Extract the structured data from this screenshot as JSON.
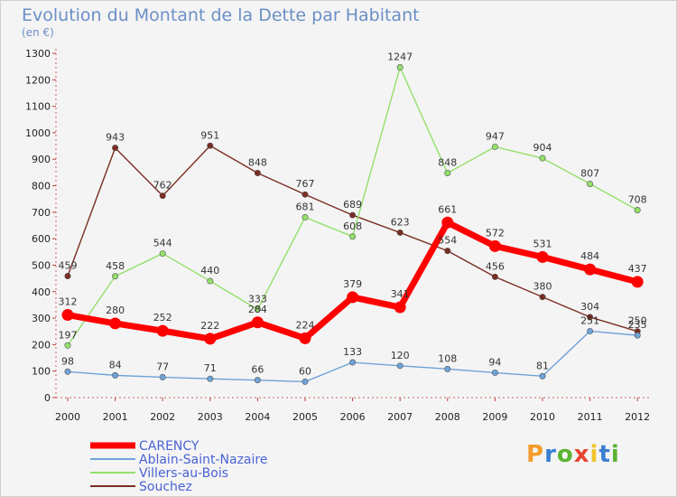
{
  "colors": {
    "CARENCY": "#ff0000",
    "Ablain-Saint-Nazaire": "#6fa3d8",
    "Villers-au-Bois": "#93e06a",
    "Souchez": "#7a2d22"
  },
  "chart_data": {
    "type": "line",
    "title": "Evolution du Montant de la Dette par Habitant",
    "subtitle": "(en €)",
    "xlabel": "",
    "ylabel": "",
    "ylim": [
      0,
      1300
    ],
    "yticks": [
      0,
      100,
      200,
      300,
      400,
      500,
      600,
      700,
      800,
      900,
      1000,
      1100,
      1200,
      1300
    ],
    "categories": [
      "2000",
      "2001",
      "2002",
      "2003",
      "2004",
      "2005",
      "2006",
      "2007",
      "2008",
      "2009",
      "2010",
      "2011",
      "2012"
    ],
    "series": [
      {
        "name": "Souchez",
        "values": [
          459,
          943,
          762,
          951,
          848,
          767,
          689,
          623,
          554,
          456,
          380,
          304,
          250
        ]
      },
      {
        "name": "Villers-au-Bois",
        "values": [
          197,
          458,
          544,
          440,
          333,
          681,
          608,
          1247,
          848,
          947,
          904,
          807,
          708
        ]
      },
      {
        "name": "Ablain-Saint-Nazaire",
        "values": [
          98,
          84,
          77,
          71,
          66,
          60,
          133,
          120,
          108,
          94,
          81,
          251,
          235
        ]
      },
      {
        "name": "CARENCY",
        "values": [
          312,
          280,
          252,
          222,
          284,
          224,
          379,
          341,
          661,
          572,
          531,
          484,
          437
        ]
      }
    ],
    "legend": [
      "CARENCY",
      "Ablain-Saint-Nazaire",
      "Villers-au-Bois",
      "Souchez"
    ],
    "legend_position": "bottom-left",
    "grid": false
  },
  "logo": {
    "letters": [
      "P",
      "r",
      "o",
      "x",
      "i",
      "t",
      "i"
    ],
    "colors": [
      "#f39c2c",
      "#3a7fd0",
      "#5cb531",
      "#e6432f",
      "#f3c22c",
      "#3a7fd0",
      "#5cb531"
    ]
  }
}
